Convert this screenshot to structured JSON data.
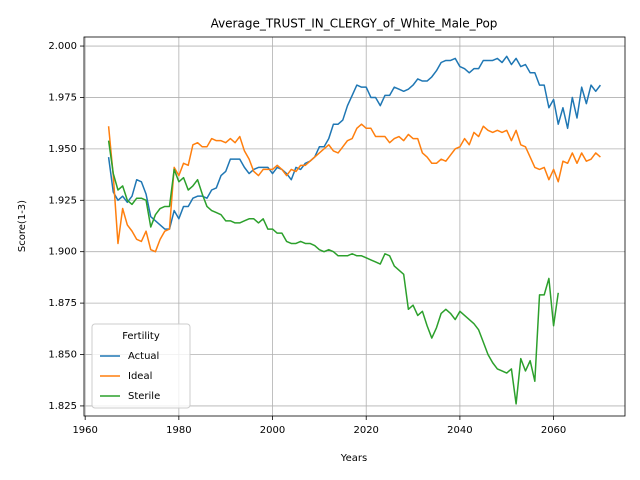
{
  "chart_data": {
    "type": "line",
    "title": "Average_TRUST_IN_CLERGY_of_White_Male_Pop",
    "xlabel": "Years",
    "ylabel": "Score(1-3)",
    "x": [
      1965,
      1966,
      1967,
      1968,
      1969,
      1970,
      1971,
      1972,
      1973,
      1974,
      1975,
      1976,
      1977,
      1978,
      1979,
      1980,
      1981,
      1982,
      1983,
      1984,
      1985,
      1986,
      1987,
      1988,
      1989,
      1990,
      1991,
      1992,
      1993,
      1994,
      1995,
      1996,
      1997,
      1998,
      1999,
      2000,
      2001,
      2002,
      2003,
      2004,
      2005,
      2006,
      2007,
      2008,
      2009,
      2010,
      2011,
      2012,
      2013,
      2014,
      2015,
      2016,
      2017,
      2018,
      2019,
      2020,
      2021,
      2022,
      2023,
      2024,
      2025,
      2026,
      2027,
      2028,
      2029,
      2030,
      2031,
      2032,
      2033,
      2034,
      2035,
      2036,
      2037,
      2038,
      2039,
      2040,
      2041,
      2042,
      2043,
      2044,
      2045,
      2046,
      2047,
      2048,
      2049,
      2050,
      2051,
      2052,
      2053,
      2054,
      2055,
      2056,
      2057,
      2058,
      2059,
      2060,
      2061,
      2062,
      2063,
      2064,
      2065,
      2066,
      2067,
      2068,
      2069,
      2070
    ],
    "series": [
      {
        "name": "Actual",
        "color": "#1f77b4",
        "values": [
          1.946,
          1.929,
          1.925,
          1.927,
          1.924,
          1.927,
          1.935,
          1.934,
          1.928,
          1.917,
          1.915,
          1.913,
          1.911,
          1.911,
          1.92,
          1.916,
          1.922,
          1.922,
          1.926,
          1.927,
          1.927,
          1.926,
          1.93,
          1.931,
          1.937,
          1.939,
          1.945,
          1.945,
          1.945,
          1.941,
          1.938,
          1.94,
          1.941,
          1.941,
          1.941,
          1.938,
          1.941,
          1.94,
          1.938,
          1.935,
          1.941,
          1.94,
          1.943,
          1.944,
          1.946,
          1.951,
          1.951,
          1.955,
          1.962,
          1.962,
          1.964,
          1.971,
          1.976,
          1.981,
          1.98,
          1.98,
          1.975,
          1.975,
          1.971,
          1.976,
          1.976,
          1.98,
          1.979,
          1.978,
          1.979,
          1.981,
          1.984,
          1.983,
          1.983,
          1.985,
          1.988,
          1.992,
          1.993,
          1.993,
          1.994,
          1.99,
          1.989,
          1.987,
          1.989,
          1.989,
          1.993,
          1.993,
          1.993,
          1.994,
          1.992,
          1.995,
          1.991,
          1.994,
          1.99,
          1.991,
          1.987,
          1.987,
          1.981,
          1.981,
          1.97,
          1.974,
          1.962,
          1.97,
          1.96,
          1.975,
          1.965,
          1.98,
          1.972,
          1.981,
          1.978,
          1.981
        ]
      },
      {
        "name": "Ideal",
        "color": "#ff7f0e",
        "values": [
          1.961,
          1.937,
          1.904,
          1.921,
          1.913,
          1.91,
          1.906,
          1.905,
          1.91,
          1.901,
          1.9,
          1.906,
          1.91,
          1.911,
          1.941,
          1.937,
          1.943,
          1.942,
          1.952,
          1.953,
          1.951,
          1.951,
          1.955,
          1.954,
          1.954,
          1.953,
          1.955,
          1.953,
          1.956,
          1.949,
          1.945,
          1.939,
          1.937,
          1.94,
          1.94,
          1.94,
          1.942,
          1.94,
          1.937,
          1.94,
          1.939,
          1.942,
          1.942,
          1.944,
          1.946,
          1.948,
          1.95,
          1.952,
          1.949,
          1.948,
          1.951,
          1.954,
          1.955,
          1.96,
          1.962,
          1.96,
          1.96,
          1.956,
          1.956,
          1.956,
          1.953,
          1.955,
          1.956,
          1.954,
          1.957,
          1.955,
          1.955,
          1.948,
          1.946,
          1.943,
          1.943,
          1.945,
          1.944,
          1.947,
          1.95,
          1.951,
          1.955,
          1.952,
          1.958,
          1.956,
          1.961,
          1.959,
          1.958,
          1.959,
          1.958,
          1.959,
          1.954,
          1.959,
          1.952,
          1.951,
          1.946,
          1.941,
          1.94,
          1.941,
          1.935,
          1.94,
          1.934,
          1.944,
          1.943,
          1.948,
          1.943,
          1.948,
          1.944,
          1.945,
          1.948,
          1.946
        ]
      },
      {
        "name": "Sterile",
        "color": "#2ca02c",
        "values": [
          1.954,
          1.938,
          1.93,
          1.932,
          1.925,
          1.923,
          1.926,
          1.926,
          1.925,
          1.912,
          1.918,
          1.921,
          1.922,
          1.922,
          1.94,
          1.934,
          1.936,
          1.93,
          1.932,
          1.935,
          1.928,
          1.922,
          1.92,
          1.919,
          1.918,
          1.915,
          1.915,
          1.914,
          1.914,
          1.915,
          1.916,
          1.916,
          1.914,
          1.916,
          1.911,
          1.911,
          1.909,
          1.909,
          1.905,
          1.904,
          1.904,
          1.905,
          1.904,
          1.904,
          1.903,
          1.901,
          1.9,
          1.901,
          1.9,
          1.898,
          1.898,
          1.898,
          1.899,
          1.898,
          1.898,
          1.897,
          1.896,
          1.895,
          1.894,
          1.899,
          1.898,
          1.893,
          1.891,
          1.889,
          1.872,
          1.874,
          1.869,
          1.871,
          1.864,
          1.858,
          1.863,
          1.87,
          1.872,
          1.87,
          1.867,
          1.871,
          1.869,
          1.867,
          1.865,
          1.862,
          1.856,
          1.85,
          1.846,
          1.843,
          1.842,
          1.841,
          1.843,
          1.826,
          1.848,
          1.842,
          1.847,
          1.837,
          1.879,
          1.879,
          1.887,
          1.864,
          1.88,
          null,
          null,
          null,
          null,
          null,
          null,
          null,
          null,
          null
        ]
      }
    ],
    "legend_title": "Fertility",
    "legend": "lower left",
    "grid": true,
    "xlim": [
      1959.75,
      2075.25
    ],
    "xticks": [
      1960,
      1980,
      2000,
      2020,
      2040,
      2060
    ],
    "ylim": [
      1.8201,
      2.0044
    ],
    "yticks": [
      1.825,
      {
        "value": 1.85,
        "label": "1.850"
      },
      1.875,
      {
        "value": 1.9,
        "label": "1.900"
      },
      1.925,
      {
        "value": 1.95,
        "label": "1.950"
      },
      1.975,
      {
        "value": 2,
        "label": "2.000"
      }
    ]
  }
}
